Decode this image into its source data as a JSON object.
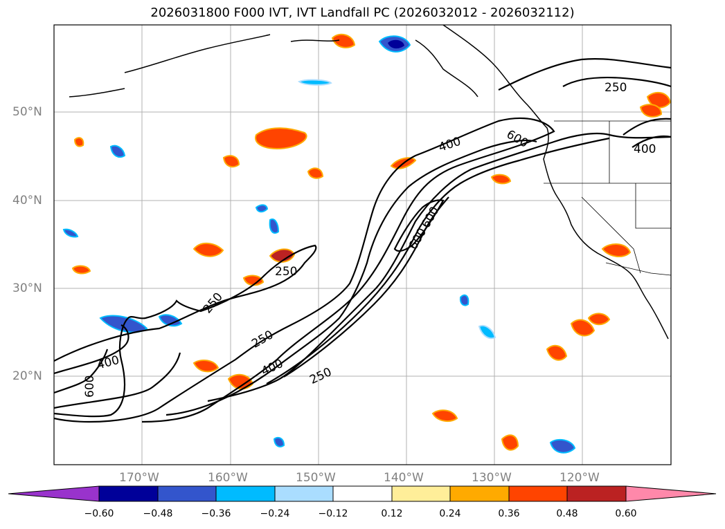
{
  "title": "2026031800 F000 IVT, IVT Landfall PC (2026032012 - 2026032112)",
  "lat_ticks": [
    {
      "label": "50°N",
      "value": 50
    },
    {
      "label": "40°N",
      "value": 40
    },
    {
      "label": "30°N",
      "value": 30
    },
    {
      "label": "20°N",
      "value": 20
    }
  ],
  "lon_ticks": [
    {
      "label": "170°W",
      "value": -170
    },
    {
      "label": "160°W",
      "value": -160
    },
    {
      "label": "150°W",
      "value": -150
    },
    {
      "label": "140°W",
      "value": -140
    },
    {
      "label": "130°W",
      "value": -130
    },
    {
      "label": "120°W",
      "value": -120
    }
  ],
  "contour_labels": [
    "250",
    "250",
    "250",
    "250",
    "400",
    "400",
    "400",
    "400",
    "600",
    "600",
    "600",
    "600",
    "250"
  ],
  "colorbar": {
    "ticks": [
      "−0.60",
      "−0.48",
      "−0.36",
      "−0.24",
      "−0.12",
      "0.12",
      "0.24",
      "0.36",
      "0.48",
      "0.60"
    ],
    "colors": [
      "#9933cc",
      "#000099",
      "#3355cc",
      "#00bbff",
      "#aaddff",
      "#ffffff",
      "#ffee99",
      "#ffaa00",
      "#ff4400",
      "#bb2222",
      "#ff88aa"
    ]
  }
}
